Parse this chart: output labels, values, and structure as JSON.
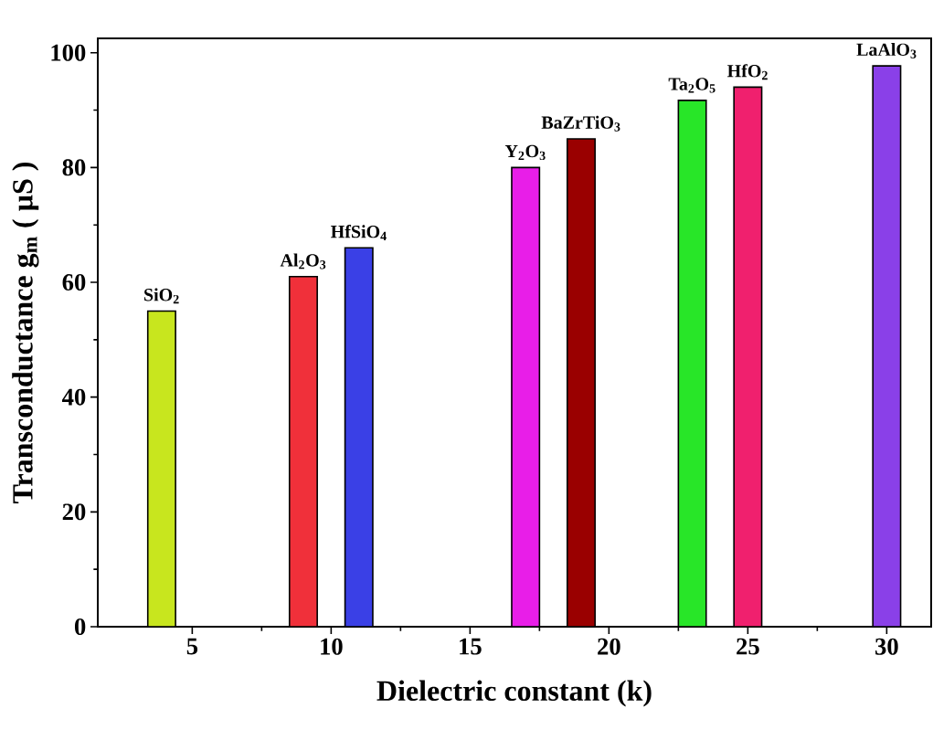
{
  "chart_data": {
    "type": "bar",
    "xlabel": "Dielectric constant (k)",
    "ylabel": "Transconductance g$_{m}$ ( µS )",
    "x": [
      3.9,
      9,
      11,
      17,
      19,
      23,
      25,
      30
    ],
    "values": [
      55,
      61,
      66,
      80,
      85,
      91.7,
      94,
      97.7
    ],
    "colors": [
      "#c8e61e",
      "#f0303a",
      "#3a40e6",
      "#e81ee8",
      "#9a0000",
      "#28e628",
      "#f0206e",
      "#8a40e8"
    ],
    "xlim": [
      1.6,
      31.6
    ],
    "ylim": [
      0,
      102.5
    ],
    "xticks": [
      5,
      10,
      15,
      20,
      25,
      30
    ],
    "yticks": [
      0,
      20,
      40,
      60,
      80,
      100
    ],
    "annotations": [
      {
        "text": "SiO$_{2}$",
        "x": 3.9,
        "y": 55
      },
      {
        "text": "Al$_{2}$O$_{3}$",
        "x": 9,
        "y": 61
      },
      {
        "text": "HfSiO$_{4}$",
        "x": 11,
        "y": 66
      },
      {
        "text": "Y$_{2}$O$_{3}$",
        "x": 17,
        "y": 80
      },
      {
        "text": "BaZrTiO$_{3}$",
        "x": 19,
        "y": 85
      },
      {
        "text": "Ta$_{2}$O$_{5}$",
        "x": 23,
        "y": 91.7
      },
      {
        "text": "HfO$_{2}$",
        "x": 25,
        "y": 94
      },
      {
        "text": "LaAlO$_{3}$",
        "x": 30,
        "y": 97.7
      }
    ]
  }
}
